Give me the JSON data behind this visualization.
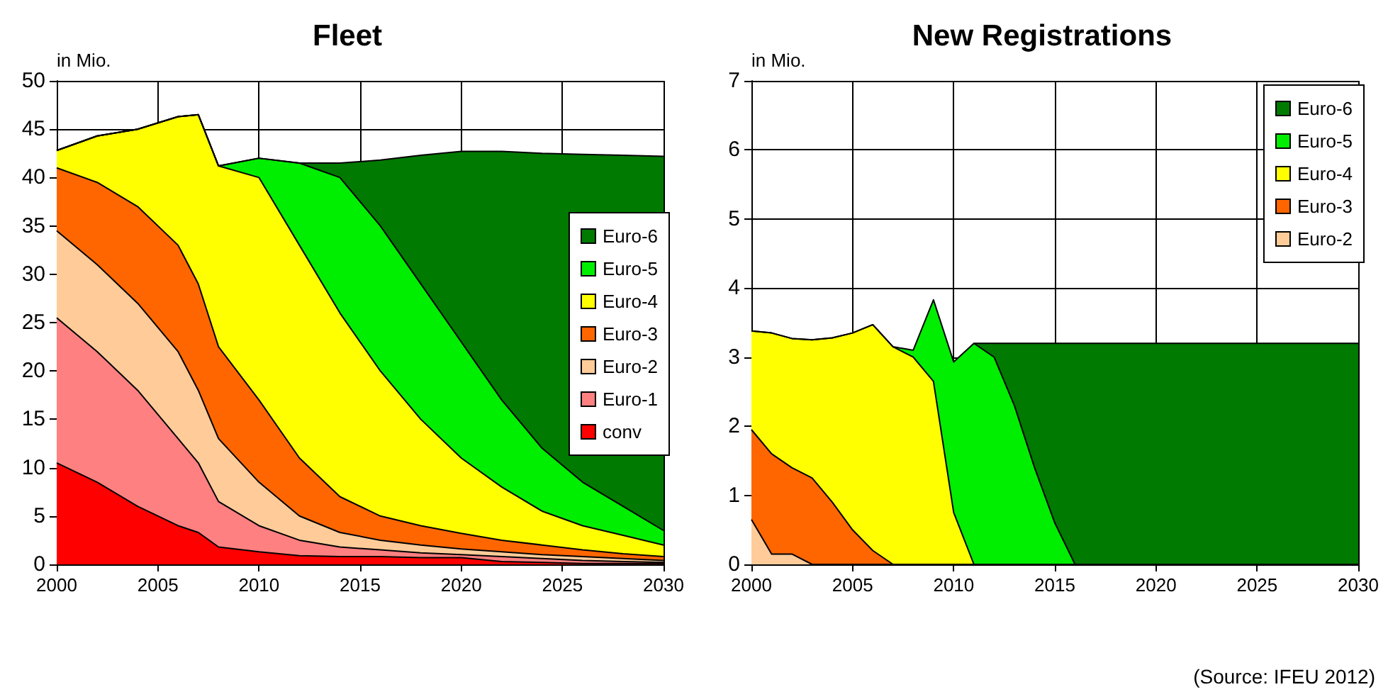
{
  "chart_data": [
    {
      "type": "area",
      "title": "Fleet",
      "ylabel": "in Mio.",
      "stacked": true,
      "grid": true,
      "legend": "right",
      "xlim": [
        2000,
        2030
      ],
      "xticks": [
        2000,
        2005,
        2010,
        2015,
        2020,
        2025,
        2030
      ],
      "ylim": [
        0,
        50
      ],
      "yticks": [
        0,
        5,
        10,
        15,
        20,
        25,
        30,
        35,
        40,
        45,
        50
      ],
      "x": [
        2000,
        2002,
        2004,
        2006,
        2007,
        2008,
        2010,
        2012,
        2014,
        2016,
        2018,
        2020,
        2022,
        2024,
        2026,
        2028,
        2030
      ],
      "series": [
        {
          "name": "conv",
          "color": "#ff0000",
          "values": [
            10.5,
            8.5,
            6,
            4,
            3.3,
            1.8,
            1.3,
            0.9,
            0.8,
            0.8,
            0.7,
            0.7,
            0.3,
            0.2,
            0.1,
            0.1,
            0.1
          ]
        },
        {
          "name": "Euro-1",
          "color": "#ff8080",
          "values": [
            15,
            13.5,
            12,
            9,
            7.2,
            4.7,
            2.7,
            1.6,
            1,
            0.7,
            0.5,
            0.3,
            0.5,
            0.4,
            0.3,
            0.2,
            0.1
          ]
        },
        {
          "name": "Euro-2",
          "color": "#ffcc99",
          "values": [
            9,
            9,
            9,
            9,
            7.5,
            6.5,
            4.5,
            2.5,
            1.5,
            1,
            0.8,
            0.6,
            0.5,
            0.4,
            0.4,
            0.3,
            0.2
          ]
        },
        {
          "name": "Euro-3",
          "color": "#ff6600",
          "values": [
            6.5,
            8.5,
            10,
            11,
            11,
            9.5,
            8.5,
            6,
            3.7,
            2.5,
            2,
            1.6,
            1.2,
            1,
            0.7,
            0.5,
            0.4
          ]
        },
        {
          "name": "Euro-4",
          "color": "#ffff00",
          "values": [
            1.8,
            4.8,
            8,
            13.3,
            17.5,
            18.7,
            23,
            22,
            19,
            15,
            11,
            7.8,
            5.5,
            3.5,
            2.5,
            1.9,
            1.2
          ]
        },
        {
          "name": "Euro-5",
          "color": "#00ee00",
          "values": [
            0,
            0,
            0,
            0,
            0,
            0,
            2,
            8.5,
            14,
            15,
            14,
            12,
            9,
            6.5,
            4.5,
            3,
            1.5
          ]
        },
        {
          "name": "Euro-6",
          "color": "#007a00",
          "values": [
            0,
            0,
            0,
            0,
            0,
            0,
            0,
            0,
            1.5,
            6.8,
            13.3,
            19.7,
            25.7,
            30.5,
            33.9,
            36.3,
            38.7
          ]
        }
      ]
    },
    {
      "type": "area",
      "title": "New Registrations",
      "ylabel": "in Mio.",
      "stacked": true,
      "grid": true,
      "legend": "top right",
      "xlim": [
        2000,
        2030
      ],
      "xticks": [
        2000,
        2005,
        2010,
        2015,
        2020,
        2025,
        2030
      ],
      "ylim": [
        0,
        7
      ],
      "yticks": [
        0,
        1,
        2,
        3,
        4,
        5,
        6,
        7
      ],
      "annotations": [
        "(Source: IFEU 2012)"
      ],
      "x": [
        2000,
        2001,
        2002,
        2003,
        2004,
        2005,
        2006,
        2007,
        2008,
        2009,
        2010,
        2011,
        2012,
        2013,
        2014,
        2015,
        2016,
        2017,
        2018,
        2019,
        2020,
        2021,
        2022,
        2023,
        2024,
        2025,
        2026,
        2027,
        2028,
        2029,
        2030
      ],
      "series": [
        {
          "name": "Euro-2",
          "color": "#ffcc99",
          "values": [
            0.65,
            0.15,
            0.15,
            0,
            0,
            0,
            0,
            0,
            0,
            0,
            0,
            0,
            0,
            0,
            0,
            0,
            0,
            0,
            0,
            0,
            0,
            0,
            0,
            0,
            0,
            0,
            0,
            0,
            0,
            0,
            0
          ]
        },
        {
          "name": "Euro-3",
          "color": "#ff6600",
          "values": [
            1.3,
            1.45,
            1.25,
            1.25,
            0.9,
            0.5,
            0.2,
            0,
            0,
            0,
            0,
            0,
            0,
            0,
            0,
            0,
            0,
            0,
            0,
            0,
            0,
            0,
            0,
            0,
            0,
            0,
            0,
            0,
            0,
            0,
            0
          ]
        },
        {
          "name": "Euro-4",
          "color": "#ffff00",
          "values": [
            1.43,
            1.75,
            1.87,
            2,
            2.38,
            2.85,
            3.27,
            3.15,
            3,
            2.65,
            0.75,
            0,
            0,
            0,
            0,
            0,
            0,
            0,
            0,
            0,
            0,
            0,
            0,
            0,
            0,
            0,
            0,
            0,
            0,
            0,
            0
          ]
        },
        {
          "name": "Euro-5",
          "color": "#00ee00",
          "values": [
            0,
            0,
            0,
            0,
            0,
            0,
            0,
            0,
            0.1,
            1.18,
            2.18,
            3.2,
            3,
            2.3,
            1.4,
            0.6,
            0,
            0,
            0,
            0,
            0,
            0,
            0,
            0,
            0,
            0,
            0,
            0,
            0,
            0,
            0
          ]
        },
        {
          "name": "Euro-6",
          "color": "#007a00",
          "values": [
            null,
            null,
            null,
            null,
            null,
            null,
            null,
            null,
            null,
            null,
            null,
            0,
            0.2,
            0.9,
            1.8,
            2.6,
            3.2,
            3.2,
            3.2,
            3.2,
            3.2,
            3.2,
            3.2,
            3.2,
            3.2,
            3.2,
            3.2,
            3.2,
            3.2,
            3.2,
            3.2
          ]
        }
      ]
    }
  ]
}
